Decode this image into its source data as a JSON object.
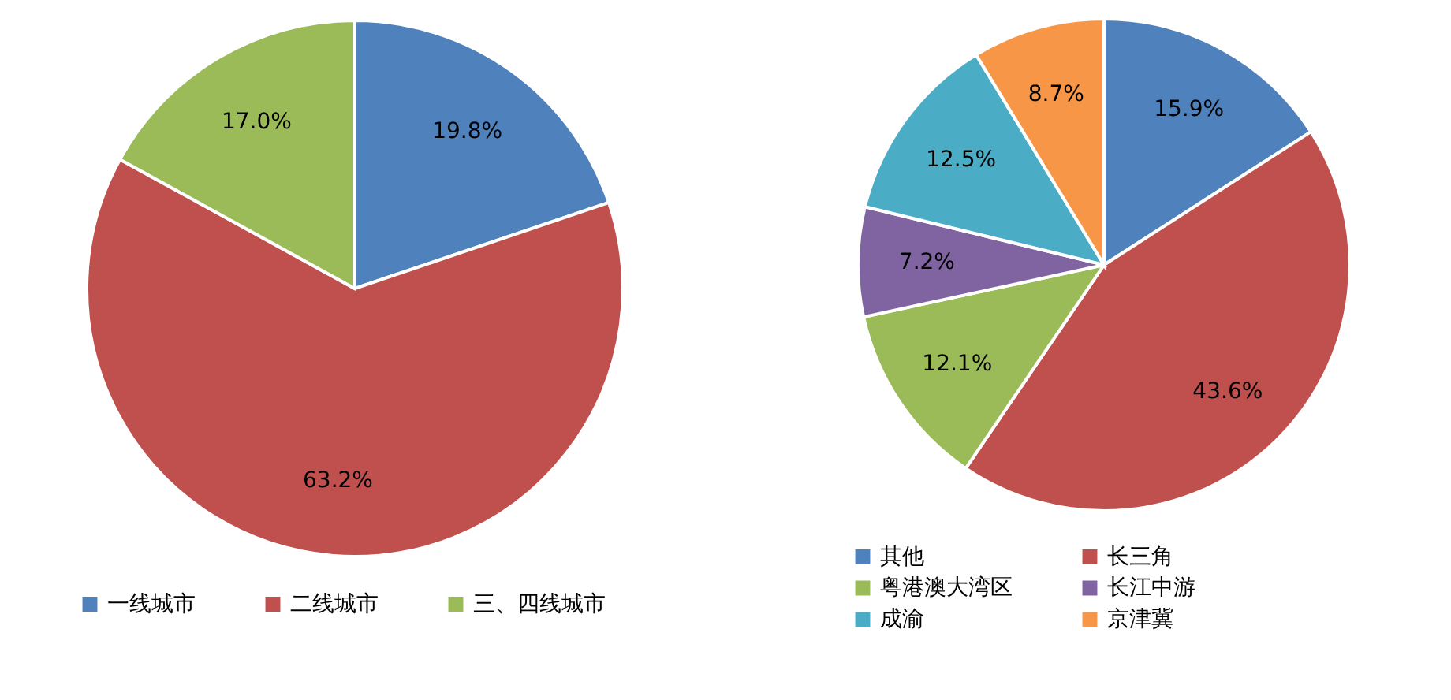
{
  "chart_data": [
    {
      "type": "pie",
      "categories": [
        "一线城市",
        "二线城市",
        "三、四线城市"
      ],
      "values": [
        19.8,
        63.2,
        17.0
      ],
      "value_labels": [
        "19.8%",
        "63.2%",
        "17.0%"
      ],
      "colors": [
        "#4f81bd",
        "#c0504d",
        "#9bbb59"
      ],
      "legend": "bottom"
    },
    {
      "type": "pie",
      "categories": [
        "其他",
        "长三角",
        "粤港澳大湾区",
        "长江中游",
        "成渝",
        "京津冀"
      ],
      "values": [
        15.9,
        43.6,
        12.1,
        7.2,
        12.5,
        8.7
      ],
      "value_labels": [
        "15.9%",
        "43.6%",
        "12.1%",
        "7.2%",
        "12.5%",
        "8.7%"
      ],
      "colors": [
        "#4f81bd",
        "#c0504d",
        "#9bbb59",
        "#8064a2",
        "#4bacc6",
        "#f79646"
      ],
      "legend": "bottom"
    }
  ]
}
